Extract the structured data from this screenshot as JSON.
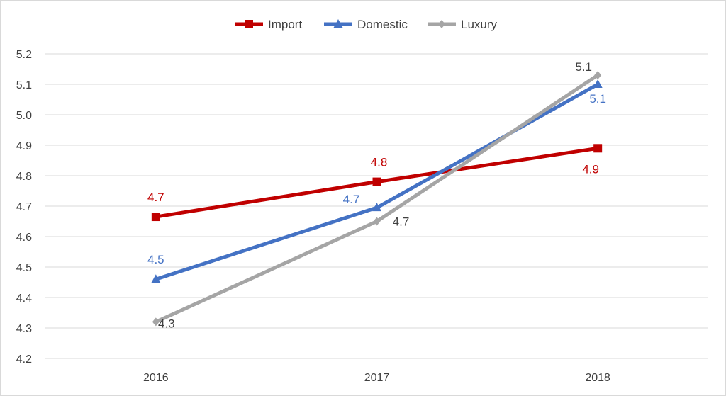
{
  "chart_data": {
    "type": "line",
    "title": "",
    "xlabel": "",
    "ylabel": "",
    "categories": [
      "2016",
      "2017",
      "2018"
    ],
    "ylim": [
      4.2,
      5.2
    ],
    "ytick_labels": [
      "4.2",
      "4.3",
      "4.4",
      "4.5",
      "4.6",
      "4.7",
      "4.8",
      "4.9",
      "5.0",
      "5.1",
      "5.2"
    ],
    "grid": true,
    "legend_position": "top",
    "series": [
      {
        "name": "Import",
        "color": "#c00000",
        "marker": "square",
        "values": [
          4.665,
          4.78,
          4.89
        ],
        "labels": [
          "4.7",
          "4.8",
          "4.9"
        ]
      },
      {
        "name": "Domestic",
        "color": "#4472c4",
        "marker": "triangle",
        "values": [
          4.46,
          4.695,
          5.1
        ],
        "labels": [
          "4.5",
          "4.7",
          "5.1"
        ]
      },
      {
        "name": "Luxury",
        "color": "#a5a5a5",
        "marker": "diamond",
        "label_color": "#404040",
        "values": [
          4.32,
          4.65,
          5.13
        ],
        "labels": [
          "4.3",
          "4.7",
          "5.1"
        ]
      }
    ]
  }
}
